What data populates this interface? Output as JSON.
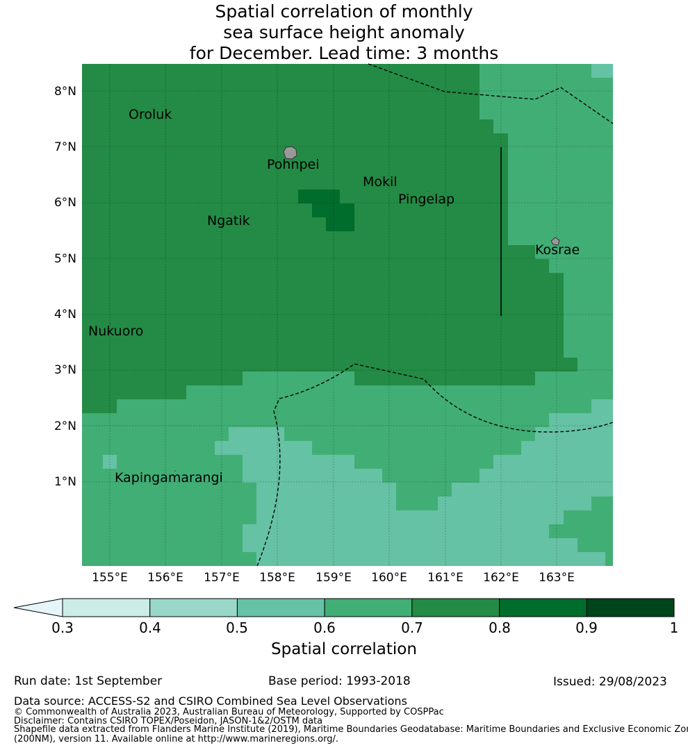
{
  "title": {
    "line1": "Spatial correlation of monthly",
    "line2": "sea surface height anomaly",
    "line3": "for December. Lead time: 3 months"
  },
  "map": {
    "lat_ticks": [
      "8°N",
      "7°N",
      "6°N",
      "5°N",
      "4°N",
      "3°N",
      "2°N",
      "1°N"
    ],
    "lon_ticks": [
      "155°E",
      "156°E",
      "157°E",
      "158°E",
      "159°E",
      "160°E",
      "161°E",
      "162°E",
      "163°E"
    ],
    "places": [
      "Oroluk",
      "Pohnpei",
      "Mokil",
      "Pingelap",
      "Ngatik",
      "Kosrae",
      "Nukuoro",
      "Kapingamarangi"
    ]
  },
  "colorbar": {
    "ticks": [
      "0.3",
      "0.4",
      "0.5",
      "0.6",
      "0.7",
      "0.8",
      "0.9",
      "1"
    ],
    "colors": [
      "#ccece6",
      "#99d8c9",
      "#66c2a4",
      "#41ae76",
      "#238b45",
      "#006d2c",
      "#00441b"
    ],
    "extend_color": "#e5f5f9",
    "label": "Spatial correlation"
  },
  "footer": {
    "run_date": "Run date: 1st September",
    "base_period": "Base period: 1993-2018",
    "issued": "Issued: 29/08/2023",
    "data_source": "Data source: ACCESS-S2 and CSIRO Combined Sea Level Observations",
    "copyright": "© Commonwealth of Australia 2023, Australian Bureau of Meteorology, Supported by COSPPac",
    "disclaimer": "Disclaimer: Contains CSIRO TOPEX/Poseidon, JASON-1&2/OSTM data",
    "shapefile_line1": "Shapefile data extracted from Flanders Marine Institute (2019), Maritime Boundaries Geodatabase: Maritime Boundaries and Exclusive Economic Zones",
    "shapefile_line2": "(200NM), version 11. Available online at http://www.marineregions.org/."
  }
}
